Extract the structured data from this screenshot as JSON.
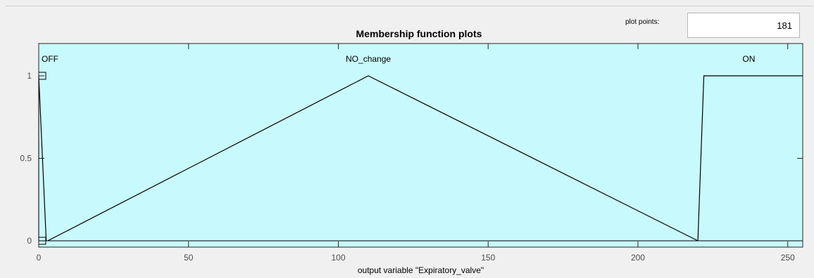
{
  "panel": {
    "title": "Membership function plots",
    "plot_points_label": "plot points:",
    "plot_points_value": "181"
  },
  "chart_data": {
    "type": "line",
    "title": "Membership function plots",
    "xlabel": "output variable \"Expiratory_valve\"",
    "ylabel": "",
    "xlim": [
      0,
      255
    ],
    "ylim": [
      0,
      1
    ],
    "x_ticks": [
      0,
      50,
      100,
      150,
      200,
      250
    ],
    "y_ticks": [
      0,
      0.5,
      1
    ],
    "background_color": "#c8fafd",
    "line_color": "#000000",
    "series": [
      {
        "name": "OFF",
        "x": [
          0,
          0,
          2.5
        ],
        "y": [
          0,
          1,
          0
        ]
      },
      {
        "name": "NO_change",
        "x": [
          3,
          110,
          220
        ],
        "y": [
          0,
          1,
          0
        ]
      },
      {
        "name": "ON",
        "x": [
          220,
          222,
          255
        ],
        "y": [
          0,
          1,
          1
        ]
      }
    ],
    "label_positions": {
      "OFF": 0,
      "NO_change": 110,
      "ON": 237
    }
  }
}
